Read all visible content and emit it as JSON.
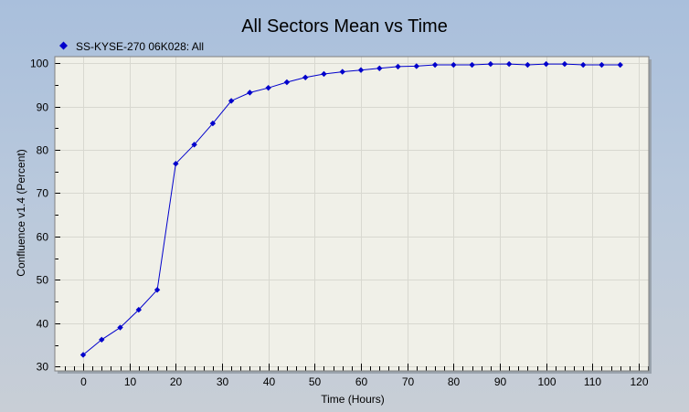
{
  "colors": {
    "series": "#0000cc",
    "plot_background": "#f0f0e8",
    "grid": "#d8d8d0",
    "plot_border": "#808080"
  },
  "chart_data": {
    "type": "line",
    "title": "All Sectors Mean vs Time",
    "xlabel": "Time (Hours)",
    "ylabel": "Confluence v1.4 (Percent)",
    "xlim": [
      -5,
      122
    ],
    "ylim": [
      29,
      101.5
    ],
    "xticks": [
      0,
      10,
      20,
      30,
      40,
      50,
      60,
      70,
      80,
      90,
      100,
      110,
      120
    ],
    "yticks": [
      30,
      40,
      50,
      60,
      70,
      80,
      90,
      100
    ],
    "x_minor_step": 2,
    "y_minor_step": 5,
    "grid": true,
    "legend": "top-left",
    "series": [
      {
        "name": "SS-KYSE-270 06K028: All",
        "marker": "diamond",
        "x": [
          0,
          4,
          8,
          12,
          16,
          20,
          24,
          28,
          32,
          36,
          40,
          44,
          48,
          52,
          56,
          60,
          64,
          68,
          72,
          76,
          80,
          84,
          88,
          92,
          96,
          100,
          104,
          108,
          112,
          116
        ],
        "y": [
          32.7,
          36.2,
          39.0,
          43.1,
          47.7,
          76.8,
          81.2,
          86.1,
          91.3,
          93.2,
          94.3,
          95.6,
          96.7,
          97.5,
          98.0,
          98.4,
          98.8,
          99.2,
          99.3,
          99.6,
          99.6,
          99.6,
          99.8,
          99.8,
          99.6,
          99.8,
          99.8,
          99.6,
          99.6,
          99.6
        ]
      }
    ]
  }
}
